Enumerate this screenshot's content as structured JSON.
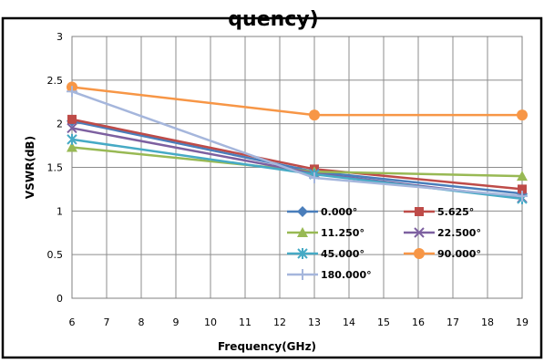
{
  "chart_data": {
    "type": "line",
    "title_fragment": "quency)",
    "xlabel": "Frequency(GHz)",
    "ylabel": "VSWR(dB)",
    "xlim": [
      6,
      19
    ],
    "ylim": [
      0,
      3
    ],
    "x_ticks": [
      "6",
      "7",
      "8",
      "9",
      "10",
      "11",
      "12",
      "13",
      "14",
      "15",
      "16",
      "17",
      "18",
      "19"
    ],
    "y_ticks": [
      "0",
      "0.5",
      "1",
      "1.5",
      "2",
      "2.5",
      "3"
    ],
    "grid": true,
    "legend_position": "inside-bottom-right",
    "x": [
      6,
      13,
      19
    ],
    "series": [
      {
        "name": "0.000°",
        "values": [
          2.03,
          1.45,
          1.2
        ],
        "color": "#4a7ebb",
        "marker": "diamond"
      },
      {
        "name": "5.625°",
        "values": [
          2.05,
          1.48,
          1.25
        ],
        "color": "#be4b48",
        "marker": "square"
      },
      {
        "name": "11.250°",
        "values": [
          1.73,
          1.45,
          1.4
        ],
        "color": "#98b954",
        "marker": "triangle"
      },
      {
        "name": "22.500°",
        "values": [
          1.95,
          1.43,
          1.15
        ],
        "color": "#7d60a0",
        "marker": "x"
      },
      {
        "name": "45.000°",
        "values": [
          1.82,
          1.42,
          1.14
        ],
        "color": "#46aac5",
        "marker": "star"
      },
      {
        "name": "90.000°",
        "values": [
          2.42,
          2.1,
          2.1
        ],
        "color": "#f79646",
        "marker": "circle"
      },
      {
        "name": "180.000°",
        "values": [
          2.37,
          1.38,
          1.17
        ],
        "color": "#a5b6dc",
        "marker": "plus"
      }
    ]
  }
}
